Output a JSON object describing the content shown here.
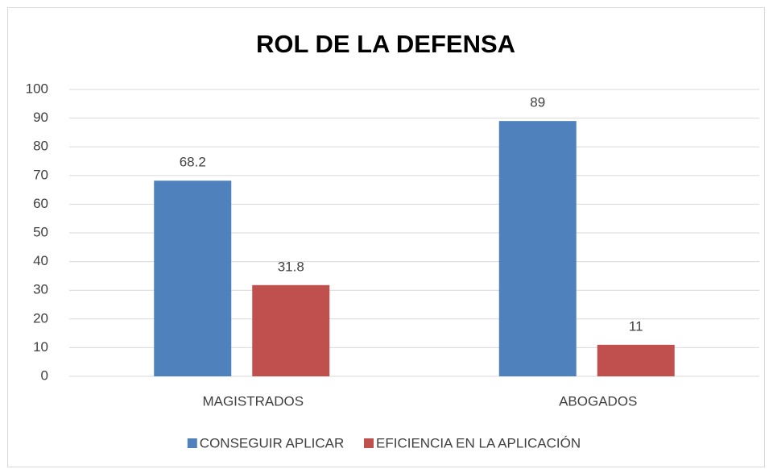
{
  "chart_data": {
    "type": "bar",
    "title": "ROL DE LA DEFENSA",
    "categories": [
      "MAGISTRADOS",
      "ABOGADOS"
    ],
    "series": [
      {
        "name": "CONSEGUIR APLICAR",
        "color": "#4f81bd",
        "values": [
          68.2,
          89
        ]
      },
      {
        "name": "EFICIENCIA EN LA APLICACIÓN",
        "color": "#c0504d",
        "values": [
          31.8,
          11
        ]
      }
    ],
    "ylim": [
      0,
      100
    ],
    "yticks": [
      0,
      10,
      20,
      30,
      40,
      50,
      60,
      70,
      80,
      90,
      100
    ],
    "grid": true,
    "legend": "bottom"
  }
}
